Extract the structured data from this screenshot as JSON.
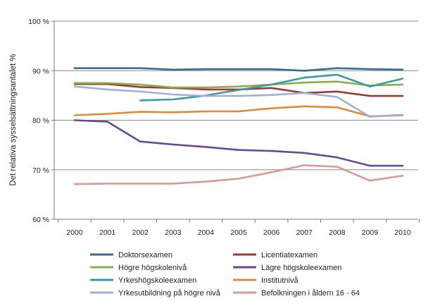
{
  "chart_data": {
    "type": "line",
    "title": "",
    "xlabel": "",
    "ylabel": "Det relativa sysselsättningsantalet %",
    "ylim": [
      60,
      100
    ],
    "y_ticks": [
      60,
      70,
      80,
      90,
      100
    ],
    "y_tick_labels": [
      "60 %",
      "70 %",
      "80 %",
      "90 %",
      "100 %"
    ],
    "x": [
      2000,
      2001,
      2002,
      2003,
      2004,
      2005,
      2006,
      2007,
      2008,
      2009,
      2010
    ],
    "x_tick_labels": [
      "2000",
      "2001",
      "2002",
      "2003",
      "2004",
      "2005",
      "2006",
      "2007",
      "2008",
      "2009",
      "2010"
    ],
    "grid": true,
    "legend_position": "bottom",
    "series": [
      {
        "name": "Doktorsexamen",
        "color": "#3B6A93",
        "values": [
          90.5,
          90.5,
          90.5,
          90.2,
          90.3,
          90.3,
          90.3,
          90.0,
          90.5,
          90.3,
          90.2
        ]
      },
      {
        "name": "Licentiatexamen",
        "color": "#9B3A36",
        "values": [
          87.3,
          87.3,
          86.7,
          86.5,
          86.2,
          86.2,
          86.5,
          85.5,
          85.8,
          84.9,
          84.9
        ]
      },
      {
        "name": "Högre högskolenivå",
        "color": "#8AAE4A",
        "values": [
          87.5,
          87.5,
          87.2,
          86.6,
          86.6,
          86.8,
          87.2,
          87.6,
          87.8,
          87.0,
          87.2
        ]
      },
      {
        "name": "Lägre högskoleexamen",
        "color": "#6A4A8F",
        "values": [
          80.0,
          79.7,
          75.7,
          75.1,
          74.6,
          74.0,
          73.8,
          73.4,
          72.5,
          70.8,
          70.8
        ]
      },
      {
        "name": "Yrkeshögskoleexamen",
        "color": "#3B9AA6",
        "values": [
          null,
          null,
          84.0,
          84.2,
          85.0,
          86.1,
          87.2,
          88.6,
          89.2,
          86.8,
          88.4
        ]
      },
      {
        "name": "Institutnivå",
        "color": "#E08A3A",
        "values": [
          81.0,
          81.3,
          81.7,
          81.6,
          81.8,
          81.8,
          82.4,
          82.8,
          82.6,
          80.8,
          81.0
        ]
      },
      {
        "name": "Yrkesutbildning på högre nivå",
        "color": "#9CB2D8",
        "values": [
          86.8,
          86.2,
          85.8,
          85.2,
          84.9,
          84.9,
          85.1,
          85.5,
          84.7,
          80.7,
          81.1
        ]
      },
      {
        "name": "Befolkningen i åldern 16 - 64",
        "color": "#D99A96",
        "values": [
          67.1,
          67.2,
          67.2,
          67.2,
          67.6,
          68.2,
          69.5,
          70.9,
          70.6,
          67.8,
          68.8
        ]
      }
    ]
  }
}
